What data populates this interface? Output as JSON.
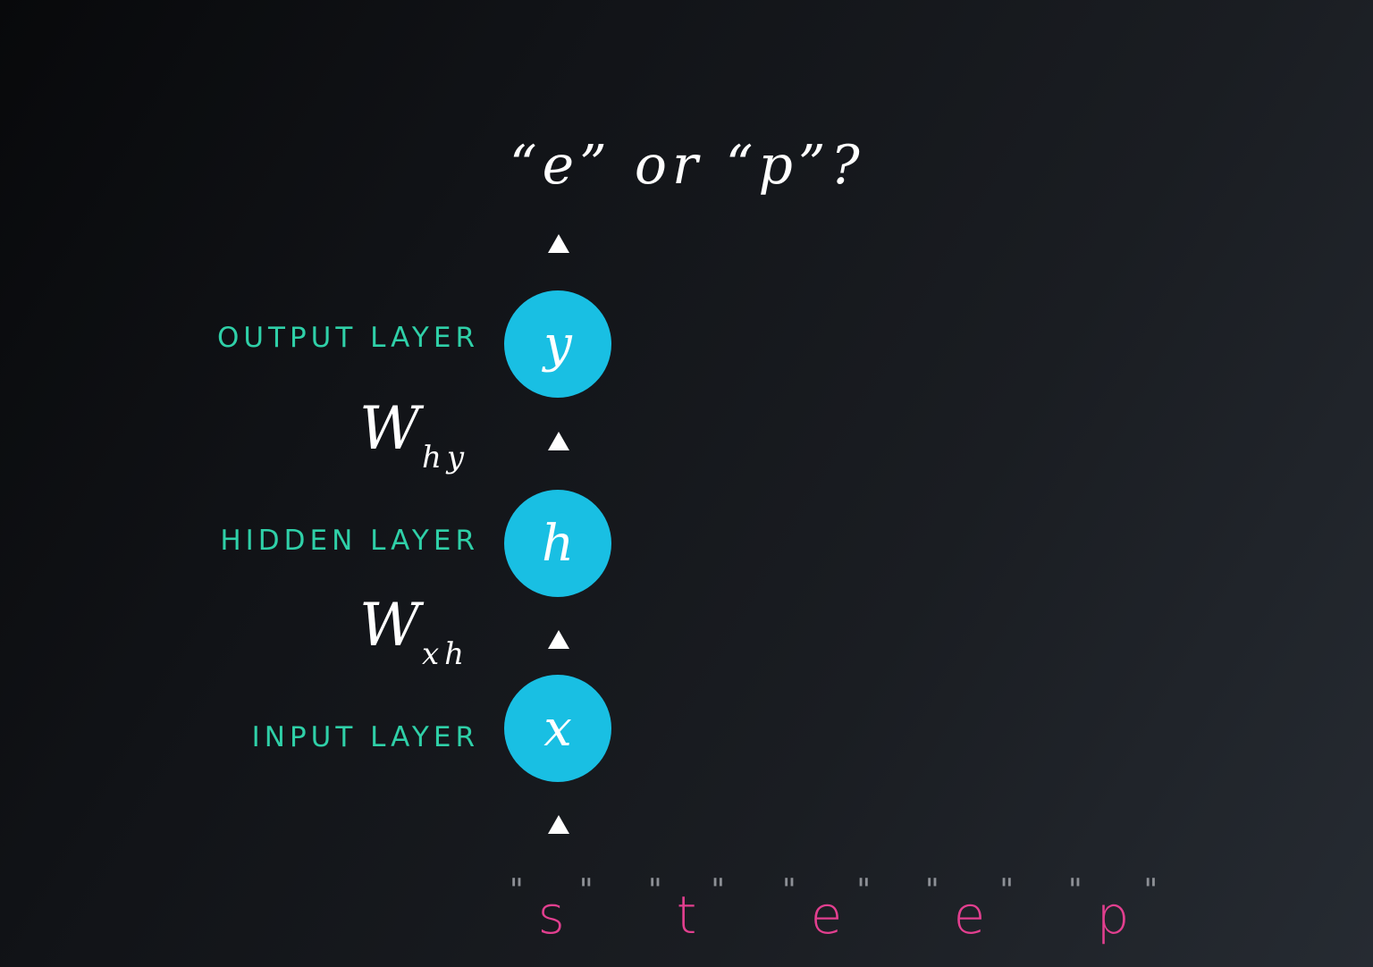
{
  "question": "“e” or “p”?",
  "layers": {
    "output": {
      "label": "OUTPUT LAYER",
      "symbol": "y"
    },
    "hidden": {
      "label": "HIDDEN LAYER",
      "symbol": "h"
    },
    "input": {
      "label": "INPUT LAYER",
      "symbol": "x"
    }
  },
  "weights": {
    "hidden_to_output": {
      "main": "W",
      "sub": "hy"
    },
    "input_to_hidden": {
      "main": "W",
      "sub": "xh"
    }
  },
  "sequence": {
    "quote": "\"",
    "letters": [
      "s",
      "t",
      "e",
      "e",
      "p"
    ]
  },
  "colors": {
    "node": "#19bfe3",
    "layer_label": "#2fd0a8",
    "sequence_letter": "#e23f8f",
    "arrow": "#ffffff"
  }
}
